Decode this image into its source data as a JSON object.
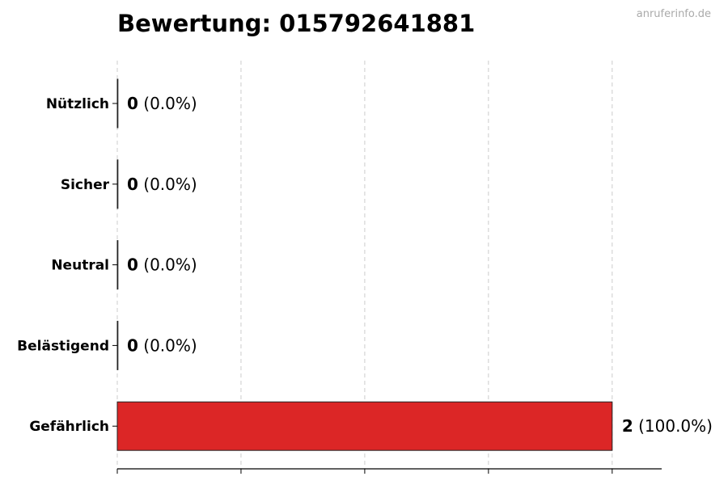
{
  "title": "Bewertung: 015792641881",
  "watermark": "anruferinfo.de",
  "chart_data": {
    "type": "bar",
    "orientation": "horizontal",
    "title": "Bewertung: 015792641881",
    "xlabel": "",
    "ylabel": "",
    "categories": [
      "Nützlich",
      "Sicher",
      "Neutral",
      "Belästigend",
      "Gefährlich"
    ],
    "values": [
      0,
      0,
      0,
      0,
      2
    ],
    "value_labels": [
      "0",
      "0",
      "0",
      "0",
      "2"
    ],
    "percent_labels": [
      "(0.0%)",
      "(0.0%)",
      "(0.0%)",
      "(0.0%)",
      "(100.0%)"
    ],
    "bar_color": "#dc2626",
    "xlim": [
      0,
      2.2
    ],
    "xticks": [
      0,
      0.5,
      1,
      1.5,
      2
    ],
    "grid": "x-dashed",
    "legend": "none"
  }
}
